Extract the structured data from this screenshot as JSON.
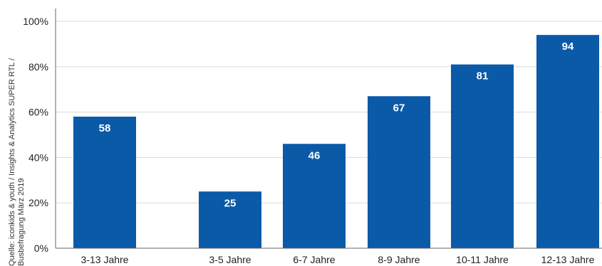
{
  "chart_data": {
    "type": "bar",
    "categories": [
      "3-13 Jahre",
      "3-5 Jahre",
      "6-7 Jahre",
      "8-9 Jahre",
      "10-11 Jahre",
      "12-13 Jahre"
    ],
    "values": [
      58,
      25,
      46,
      67,
      81,
      94
    ],
    "data_labels": [
      "58",
      "25",
      "46",
      "67",
      "81",
      "94"
    ],
    "ylim": [
      0,
      100
    ],
    "yticks": [
      "0%",
      "20%",
      "40%",
      "60%",
      "80%",
      "100%"
    ],
    "grid": true,
    "bar_color": "#0a5aa8",
    "label_color": "#ffffff"
  },
  "source_note": {
    "line1": "Quelle: iconkids & youth / Insights & Analytics SUPER RTL /",
    "line2": "Busbefragung März 2019"
  }
}
